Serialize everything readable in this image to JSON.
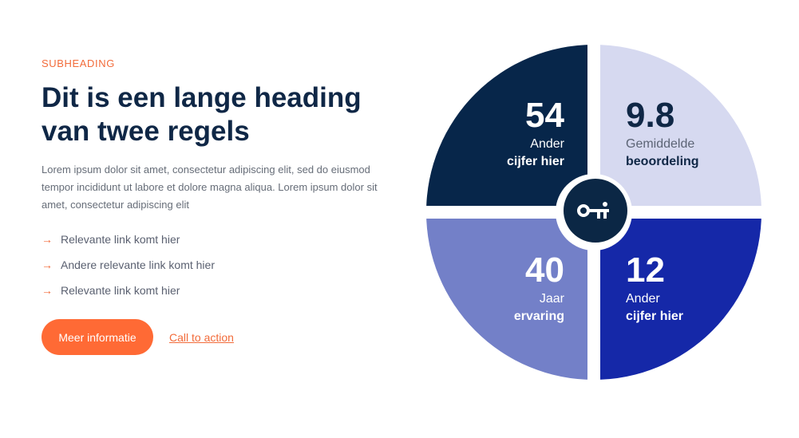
{
  "section": {
    "subheading": "SUBHEADING",
    "heading": "Dit is een lange heading van twee regels",
    "body": "Lorem ipsum dolor sit amet, consectetur adipiscing elit, sed do eiusmod tempor incididunt ut labore et dolore magna aliqua. Lorem ipsum dolor sit amet, consectetur adipiscing elit",
    "links": [
      {
        "label": "Relevante link komt hier",
        "icon": "arrow-right-icon"
      },
      {
        "label": "Andere relevante link komt hier",
        "icon": "arrow-right-icon"
      },
      {
        "label": "Relevante link komt hier",
        "icon": "arrow-right-icon"
      }
    ],
    "primary_button": "Meer informatie",
    "cta_link": "Call to action"
  },
  "stats": [
    {
      "number": "54",
      "line1": "Ander",
      "line2": "cijfer hier",
      "color": "#07264a"
    },
    {
      "number": "9.8",
      "line1": "Gemiddelde",
      "line2": "beoordeling",
      "color": "#d6d9f0"
    },
    {
      "number": "40",
      "line1": "Jaar",
      "line2": "ervaring",
      "color": "#7380c8"
    },
    {
      "number": "12",
      "line1": "Ander",
      "line2": "cijfer hier",
      "color": "#1528a8"
    }
  ],
  "center_icon": "key-icon",
  "colors": {
    "accent": "#ff6a35",
    "heading": "#0f2746",
    "body": "#666d78"
  }
}
